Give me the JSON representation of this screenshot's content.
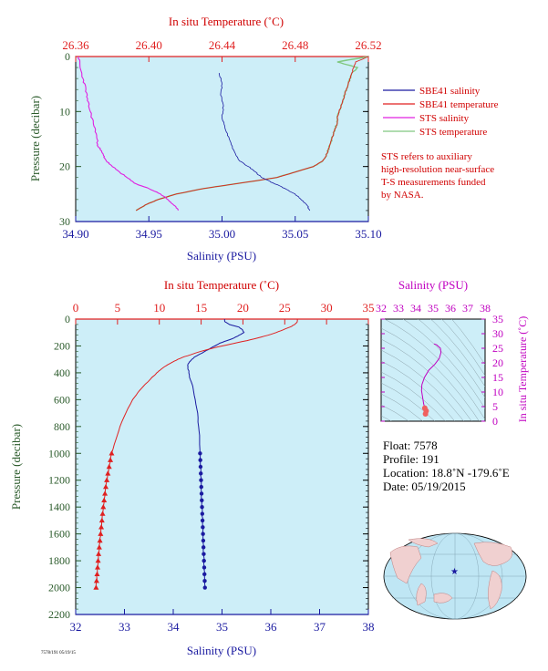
{
  "colors": {
    "plot_bg": "#cdeef8",
    "salinity": "#1a1aa0",
    "temperature": "#e02020",
    "sts_salinity": "#e020e0",
    "sts_temperature": "#80c880",
    "pressure_axis": "#2a5a2a",
    "ts_axis": "#c000c0"
  },
  "chart_data": [
    {
      "type": "line",
      "top_title": "In situ Temperature (˚C)",
      "xlabel": "Salinity (PSU)",
      "ylabel": "Pressure (decibar)",
      "salinity_ticks": [
        "34.90",
        "34.95",
        "35.00",
        "35.05",
        "35.10"
      ],
      "salinity_range": [
        34.9,
        35.1
      ],
      "temperature_ticks": [
        "26.36",
        "26.40",
        "26.44",
        "26.48",
        "26.52"
      ],
      "temperature_range": [
        26.36,
        26.52
      ],
      "pressure_ticks": [
        "0",
        "10",
        "20",
        "30"
      ],
      "pressure_range": [
        0,
        30
      ],
      "series": [
        {
          "name": "SBE41 salinity",
          "pressure": [
            3,
            5,
            7,
            9,
            11,
            13,
            15,
            17,
            19,
            20,
            21,
            22,
            23,
            24,
            25,
            26,
            27,
            28
          ],
          "values": [
            34.998,
            35.0,
            34.999,
            35.001,
            35.0,
            35.002,
            35.005,
            35.008,
            35.012,
            35.018,
            35.023,
            35.027,
            35.035,
            35.043,
            35.05,
            35.054,
            35.058,
            35.06
          ]
        },
        {
          "name": "SBE41 temperature",
          "pressure": [
            0,
            1,
            2,
            3,
            4,
            5,
            6,
            7,
            8,
            9,
            10,
            11,
            12,
            13,
            14,
            15,
            16,
            17,
            18,
            19,
            20,
            21,
            22,
            23,
            24,
            25,
            26,
            27,
            28
          ],
          "values": [
            26.52,
            26.513,
            26.512,
            26.511,
            26.51,
            26.509,
            26.508,
            26.507,
            26.506,
            26.505,
            26.504,
            26.503,
            26.503,
            26.502,
            26.501,
            26.5,
            26.499,
            26.498,
            26.497,
            26.495,
            26.49,
            26.48,
            26.47,
            26.45,
            26.43,
            26.415,
            26.405,
            26.398,
            26.393
          ]
        },
        {
          "name": "STS salinity",
          "pressure": [
            0,
            2,
            4,
            6,
            8,
            10,
            12,
            14,
            16,
            17,
            18,
            19,
            20,
            21,
            22,
            23,
            24,
            25,
            26,
            27,
            28
          ],
          "values": [
            34.902,
            34.903,
            34.905,
            34.907,
            34.908,
            34.91,
            34.912,
            34.914,
            34.915,
            34.917,
            34.919,
            34.921,
            34.925,
            34.93,
            34.935,
            34.94,
            34.95,
            34.958,
            34.963,
            34.967,
            34.97
          ]
        },
        {
          "name": "STS temperature",
          "pressure": [
            0,
            1,
            2,
            3,
            4,
            5,
            6,
            7,
            8,
            9,
            10,
            11,
            12,
            13,
            14,
            15,
            16,
            17,
            18,
            19,
            20,
            21,
            22,
            23,
            24,
            25,
            26,
            27,
            28
          ],
          "values": [
            26.52,
            26.503,
            26.514,
            26.511,
            26.51,
            26.509,
            26.508,
            26.507,
            26.506,
            26.505,
            26.504,
            26.503,
            26.503,
            26.502,
            26.501,
            26.5,
            26.499,
            26.498,
            26.497,
            26.495,
            26.49,
            26.48,
            26.47,
            26.45,
            26.43,
            26.415,
            26.405,
            26.398,
            26.393
          ]
        }
      ],
      "legend": [
        "SBE41 salinity",
        "SBE41 temperature",
        "STS salinity",
        "STS temperature"
      ],
      "legend_placement": "right",
      "note": [
        "STS refers to auxiliary",
        "high-resolution near-surface",
        "T-S measurements funded",
        "by NASA."
      ]
    },
    {
      "type": "line",
      "top_title": "In situ Temperature (˚C)",
      "xlabel": "Salinity (PSU)",
      "ylabel": "Pressure (decibar)",
      "salinity_ticks": [
        "32",
        "33",
        "34",
        "35",
        "36",
        "37",
        "38"
      ],
      "salinity_range": [
        32,
        38
      ],
      "temperature_ticks": [
        "0",
        "5",
        "10",
        "15",
        "20",
        "25",
        "30",
        "35"
      ],
      "temperature_range": [
        0,
        35
      ],
      "pressure_ticks": [
        "0",
        "200",
        "400",
        "600",
        "800",
        "1000",
        "1200",
        "1400",
        "1600",
        "1800",
        "2000",
        "2200"
      ],
      "pressure_range": [
        0,
        2200
      ],
      "series": [
        {
          "name": "Salinity",
          "pressure": [
            0,
            20,
            40,
            60,
            80,
            100,
            120,
            140,
            160,
            180,
            200,
            220,
            240,
            260,
            280,
            300,
            320,
            340,
            360,
            400,
            450,
            500,
            600,
            700,
            800,
            900,
            1000,
            1050,
            1100,
            1150,
            1200,
            1250,
            1300,
            1350,
            1400,
            1450,
            1500,
            1550,
            1600,
            1650,
            1700,
            1750,
            1800,
            1850,
            1900,
            1950,
            2000
          ],
          "values": [
            35.05,
            35.06,
            35.15,
            35.35,
            35.42,
            35.45,
            35.35,
            35.25,
            35.1,
            34.95,
            34.85,
            34.75,
            34.65,
            34.55,
            34.45,
            34.38,
            34.33,
            34.3,
            34.3,
            34.32,
            34.35,
            34.4,
            34.45,
            34.5,
            34.52,
            34.54,
            34.55,
            34.555,
            34.56,
            34.565,
            34.57,
            34.575,
            34.58,
            34.585,
            34.59,
            34.595,
            34.6,
            34.605,
            34.61,
            34.615,
            34.62,
            34.625,
            34.63,
            34.635,
            34.64,
            34.645,
            34.65
          ]
        },
        {
          "name": "Temperature",
          "pressure": [
            0,
            20,
            40,
            60,
            80,
            100,
            120,
            140,
            160,
            180,
            200,
            220,
            240,
            260,
            280,
            300,
            320,
            340,
            360,
            380,
            400,
            450,
            500,
            550,
            600,
            700,
            800,
            900,
            1000,
            1050,
            1100,
            1150,
            1200,
            1250,
            1300,
            1350,
            1400,
            1450,
            1500,
            1550,
            1600,
            1650,
            1700,
            1750,
            1800,
            1850,
            1900,
            1950,
            2000
          ],
          "values": [
            26.5,
            26.5,
            26.2,
            25.6,
            24.8,
            24.0,
            23.0,
            21.8,
            20.5,
            19.0,
            17.5,
            16.2,
            15.0,
            14.0,
            13.0,
            12.2,
            11.6,
            11.0,
            10.5,
            10.1,
            9.7,
            8.9,
            8.1,
            7.4,
            6.8,
            6.0,
            5.3,
            4.8,
            4.3,
            4.15,
            4.0,
            3.85,
            3.72,
            3.6,
            3.5,
            3.4,
            3.3,
            3.22,
            3.14,
            3.06,
            2.98,
            2.9,
            2.82,
            2.74,
            2.68,
            2.62,
            2.56,
            2.5,
            2.44
          ]
        }
      ]
    },
    {
      "type": "line",
      "xlabel": "Salinity (PSU)",
      "ylabel": "In situ Temperature (˚C)",
      "salinity_ticks": [
        "32",
        "33",
        "34",
        "35",
        "36",
        "37",
        "38"
      ],
      "salinity_range": [
        32,
        38
      ],
      "temperature_ticks": [
        "0",
        "5",
        "10",
        "15",
        "20",
        "25",
        "30",
        "35"
      ],
      "temperature_range": [
        0,
        35
      ],
      "series": [
        {
          "name": "T-S",
          "salinity": [
            34.56,
            34.6,
            34.52,
            34.45,
            34.4,
            34.33,
            34.35,
            34.5,
            34.75,
            35.1,
            35.35,
            35.45,
            35.42,
            35.2,
            35.05
          ],
          "temperature": [
            2.5,
            3.5,
            4.5,
            6.0,
            8.0,
            10.5,
            12.5,
            15.0,
            17.5,
            19.5,
            21.5,
            23.5,
            25.0,
            26.2,
            26.5
          ]
        }
      ]
    }
  ],
  "info": {
    "float": "Float:  7578",
    "profile": "Profile:  191",
    "location": "Location:  18.8˚N  -179.6˚E",
    "date": "Date:  05/19/2015"
  },
  "map": {
    "marker": "★"
  },
  "footer_small": "7578/191 05/19/15"
}
